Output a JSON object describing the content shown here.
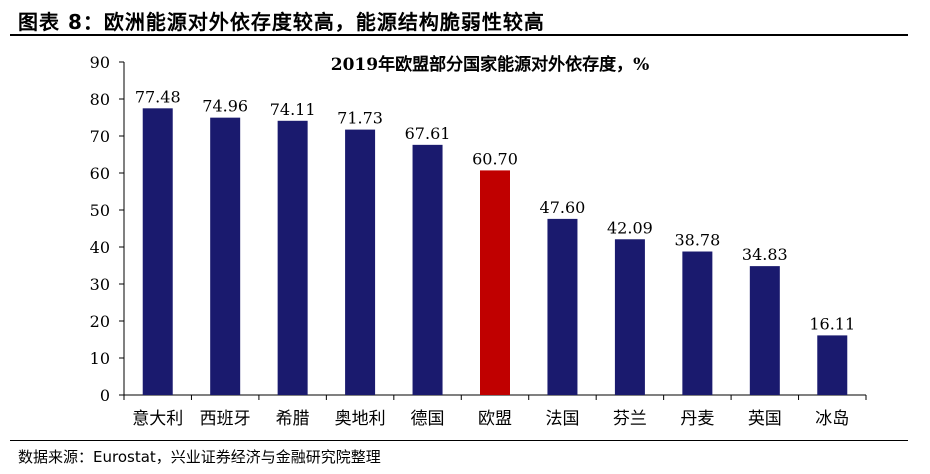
{
  "figure": {
    "title": "图表 8：欧洲能源对外依存度较高，能源结构脆弱性较高",
    "source": "数据来源：Eurostat，兴业证券经济与金融研究院整理"
  },
  "chart_data": {
    "type": "bar",
    "title": "2019年欧盟部分国家能源对外依存度，%",
    "categories": [
      "意大利",
      "西班牙",
      "希腊",
      "奥地利",
      "德国",
      "欧盟",
      "法国",
      "芬兰",
      "丹麦",
      "英国",
      "冰岛"
    ],
    "values": [
      77.48,
      74.96,
      74.11,
      71.73,
      67.61,
      60.7,
      47.6,
      42.09,
      38.78,
      34.83,
      16.11
    ],
    "value_labels": [
      "77.48",
      "74.96",
      "74.11",
      "71.73",
      "67.61",
      "60.70",
      "47.60",
      "42.09",
      "38.78",
      "34.83",
      "16.11"
    ],
    "yticks": [
      "0",
      "10",
      "20",
      "30",
      "40",
      "50",
      "60",
      "70",
      "80",
      "90"
    ],
    "ylim": [
      0,
      90
    ],
    "grid": false,
    "legend": "none",
    "colors": {
      "default": "#1a1a6e",
      "highlight": "#c00000"
    },
    "highlight_category": "欧盟"
  }
}
